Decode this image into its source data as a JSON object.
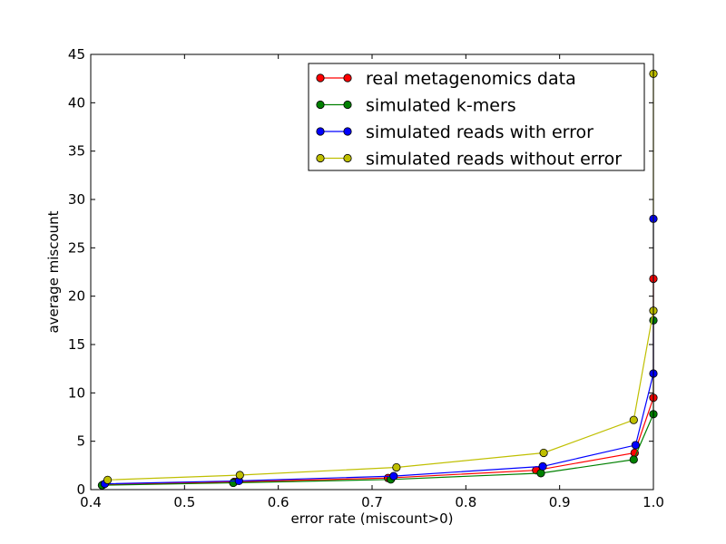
{
  "chart_data": {
    "type": "line",
    "title": "",
    "xlabel": "error rate (miscount>0)",
    "ylabel": "average miscount",
    "xlim": [
      0.4,
      1.0
    ],
    "ylim": [
      0,
      45
    ],
    "xticks": [
      0.4,
      0.5,
      0.6,
      0.7,
      0.8,
      0.9,
      1.0
    ],
    "xtick_labels": [
      "0.4",
      "0.5",
      "0.6",
      "0.7",
      "0.8",
      "0.9",
      "1.0"
    ],
    "yticks": [
      0,
      5,
      10,
      15,
      20,
      25,
      30,
      35,
      40,
      45
    ],
    "ytick_labels": [
      "0",
      "5",
      "10",
      "15",
      "20",
      "25",
      "30",
      "35",
      "40",
      "45"
    ],
    "grid": false,
    "legend_position": "top-right",
    "series": [
      {
        "name": "real metagenomics data",
        "color": "#ff0000",
        "x": [
          0.413,
          0.553,
          0.717,
          0.875,
          0.98,
          1.0,
          1.0
        ],
        "y": [
          0.5,
          0.8,
          1.2,
          2.0,
          3.8,
          9.5,
          21.8
        ]
      },
      {
        "name": "simulated k-mers",
        "color": "#008000",
        "x": [
          0.412,
          0.552,
          0.72,
          0.88,
          0.979,
          1.0,
          1.0
        ],
        "y": [
          0.45,
          0.7,
          1.05,
          1.7,
          3.1,
          7.8,
          17.5
        ]
      },
      {
        "name": "simulated reads with error",
        "color": "#0000ff",
        "x": [
          0.415,
          0.558,
          0.723,
          0.882,
          0.981,
          1.0,
          1.0
        ],
        "y": [
          0.6,
          0.9,
          1.4,
          2.4,
          4.6,
          12.0,
          28.0
        ]
      },
      {
        "name": "simulated reads without error",
        "color": "#bfbf00",
        "x": [
          0.418,
          0.559,
          0.726,
          0.883,
          0.979,
          1.0,
          1.0
        ],
        "y": [
          1.0,
          1.5,
          2.3,
          3.8,
          7.2,
          18.5,
          43.0
        ]
      }
    ]
  }
}
